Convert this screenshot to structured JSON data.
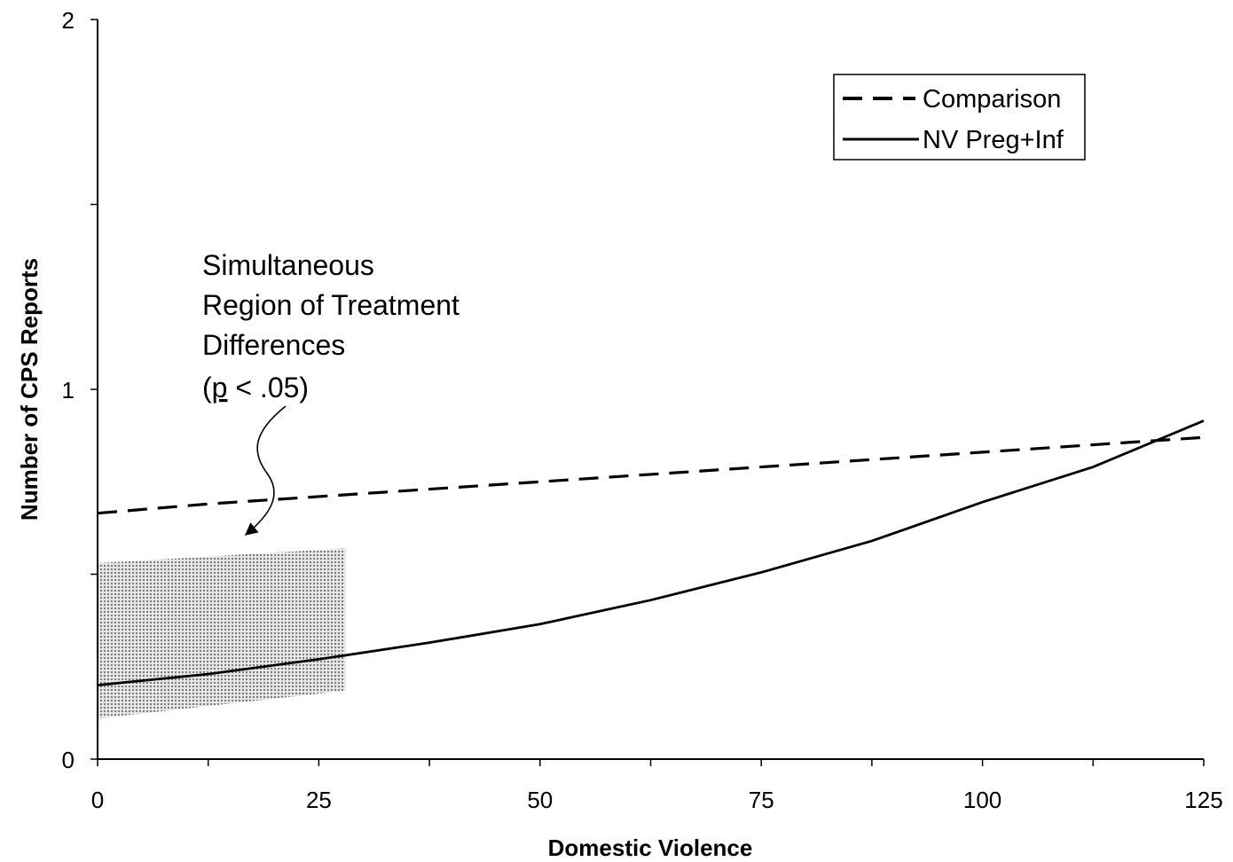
{
  "chart_data": {
    "type": "line",
    "title": "",
    "xlabel": "Domestic Violence",
    "ylabel": "Number of CPS Reports",
    "xlim": [
      0,
      125
    ],
    "ylim": [
      0,
      2
    ],
    "x_ticks": [
      0,
      25,
      50,
      75,
      100,
      125
    ],
    "x_minor_ticks": [
      12.5,
      37.5,
      62.5,
      87.5,
      112.5
    ],
    "y_ticks": [
      0,
      1,
      2
    ],
    "y_minor_ticks": [
      0.5,
      1.5
    ],
    "grid": false,
    "legend_position": "top-right",
    "series": [
      {
        "name": "Comparison",
        "style": "dashed",
        "color": "#000000",
        "x": [
          0,
          12.5,
          25,
          37.5,
          50,
          62.5,
          75,
          87.5,
          100,
          112.5,
          125
        ],
        "y": [
          0.665,
          0.69,
          0.71,
          0.73,
          0.75,
          0.77,
          0.79,
          0.81,
          0.83,
          0.85,
          0.87
        ]
      },
      {
        "name": "NV Preg+Inf",
        "style": "solid",
        "color": "#000000",
        "x": [
          0,
          12.5,
          25,
          37.5,
          50,
          62.5,
          75,
          87.5,
          100,
          112.5,
          125
        ],
        "y": [
          0.2,
          0.23,
          0.27,
          0.315,
          0.365,
          0.43,
          0.505,
          0.59,
          0.695,
          0.79,
          0.915
        ]
      }
    ],
    "shaded_region": {
      "x": [
        0,
        28
      ],
      "lower": [
        0.11,
        0.185
      ],
      "upper": [
        0.53,
        0.57
      ],
      "fill": "#9a9a9a"
    },
    "annotation": {
      "lines": [
        "Simultaneous",
        "Region of Treatment",
        "Differences"
      ],
      "p_open": "(",
      "p_symbol": "p",
      "p_rest": " < .05)"
    }
  }
}
